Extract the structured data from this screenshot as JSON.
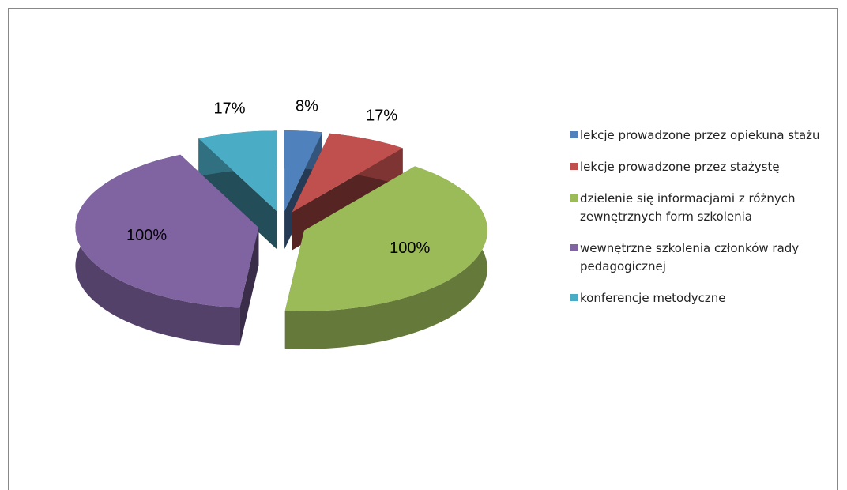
{
  "chart_data": {
    "type": "pie3d",
    "categories": [
      "lekcje prowadzone przez opiekuna stażu",
      "lekcje prowadzone przez stażystę",
      "dzielenie się informacjami z różnych zewnętrznych form szkolenia",
      "wewnętrzne szkolenia członków rady pedagogicznej",
      "konferencje metodyczne"
    ],
    "values": [
      8,
      17,
      100,
      100,
      17
    ],
    "value_labels": [
      "8%",
      "17%",
      "100%",
      "100%",
      "17%"
    ],
    "colors": [
      "#4f81bd",
      "#c0504d",
      "#9bbb59",
      "#8064a2",
      "#4bacc6"
    ],
    "legend": "right"
  }
}
